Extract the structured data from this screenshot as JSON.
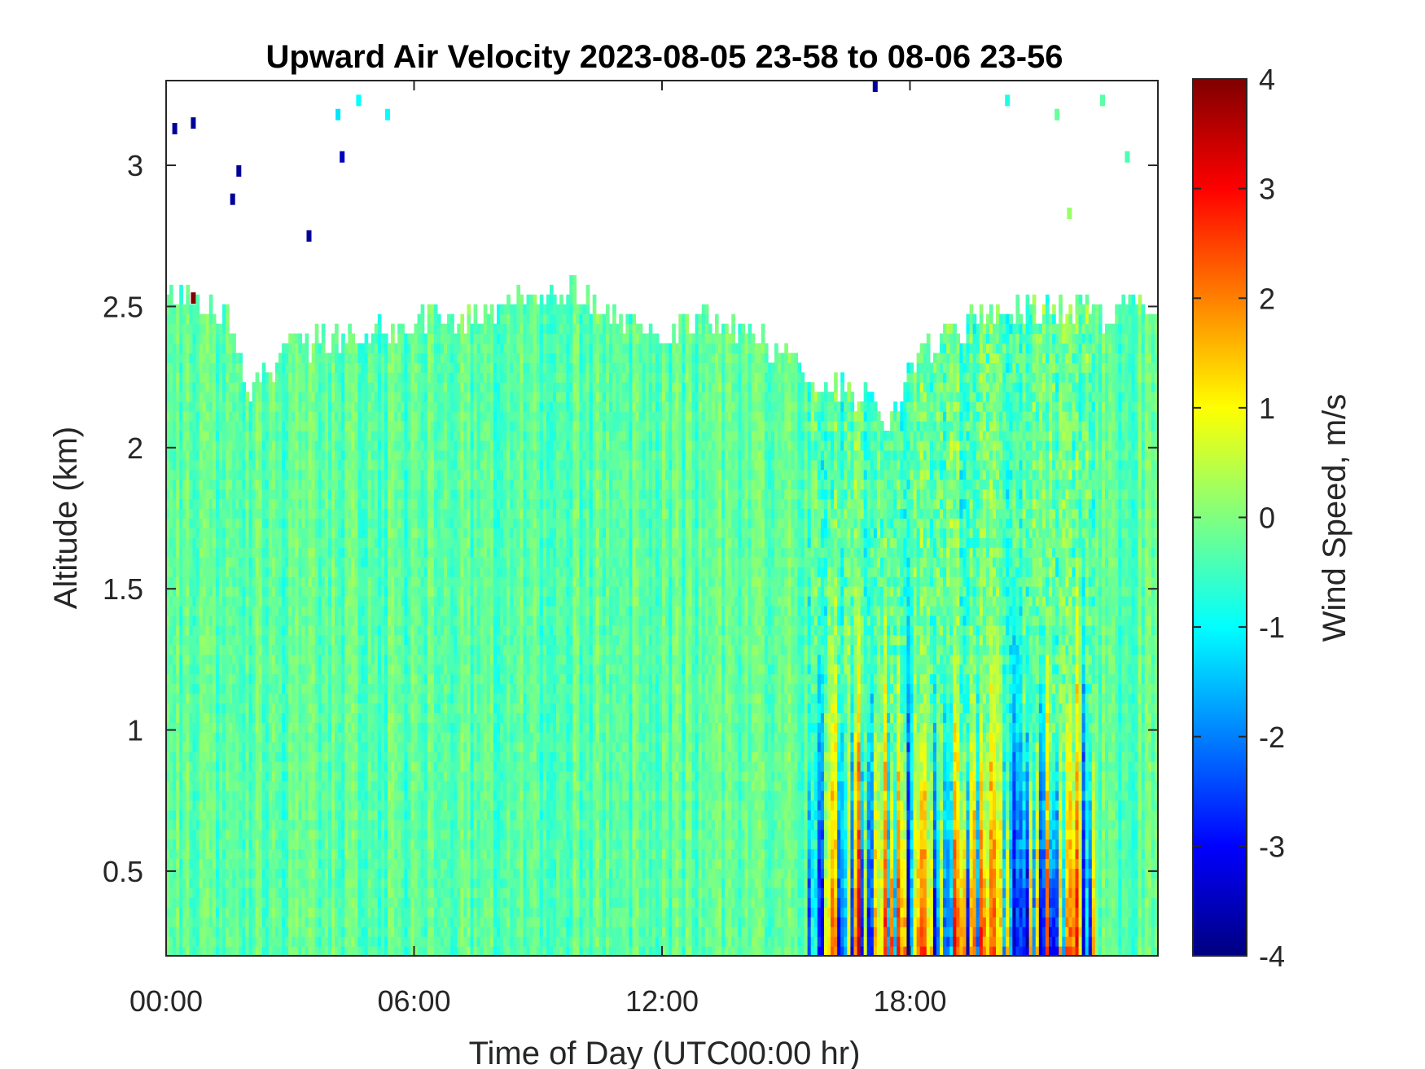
{
  "chart_data": {
    "type": "heatmap",
    "title": "Upward Air Velocity 2023-08-05 23-58 to 08-06 23-56",
    "xlabel": "Time of Day (UTC00:00 hr)",
    "ylabel": "Altitude (km)",
    "x_ticks": [
      "00:00",
      "06:00",
      "12:00",
      "18:00"
    ],
    "x_tick_values_hr": [
      0,
      6,
      12,
      18
    ],
    "xlim_hr": [
      0,
      24
    ],
    "y_ticks": [
      "0.5",
      "1",
      "1.5",
      "2",
      "2.5",
      "3"
    ],
    "y_tick_values_km": [
      0.5,
      1,
      1.5,
      2,
      2.5,
      3
    ],
    "ylim_km": [
      0.2,
      3.3
    ],
    "colorbar": {
      "label": "Wind Speed, m/s",
      "ticks": [
        "-4",
        "-3",
        "-2",
        "-1",
        "0",
        "1",
        "2",
        "3",
        "4"
      ],
      "range": [
        -4,
        4
      ],
      "colormap": "jet"
    },
    "data_top_km": [
      [
        0.0,
        2.55
      ],
      [
        0.5,
        2.55
      ],
      [
        1.0,
        2.5
      ],
      [
        1.5,
        2.45
      ],
      [
        2.0,
        2.2
      ],
      [
        3.0,
        2.35
      ],
      [
        4.0,
        2.4
      ],
      [
        5.0,
        2.4
      ],
      [
        6.0,
        2.45
      ],
      [
        7.0,
        2.45
      ],
      [
        8.0,
        2.5
      ],
      [
        9.0,
        2.55
      ],
      [
        10.0,
        2.55
      ],
      [
        11.0,
        2.45
      ],
      [
        12.0,
        2.4
      ],
      [
        13.0,
        2.45
      ],
      [
        14.0,
        2.4
      ],
      [
        15.0,
        2.35
      ],
      [
        15.5,
        2.3
      ],
      [
        16.0,
        2.2
      ],
      [
        17.0,
        2.2
      ],
      [
        17.5,
        2.1
      ],
      [
        18.0,
        2.3
      ],
      [
        19.0,
        2.4
      ],
      [
        20.0,
        2.5
      ],
      [
        21.0,
        2.5
      ],
      [
        22.0,
        2.48
      ],
      [
        23.0,
        2.48
      ],
      [
        24.0,
        2.48
      ]
    ],
    "regions": [
      {
        "x_range_hr": [
          0,
          15.5
        ],
        "altitude_km": [
          0.2,
          2.5
        ],
        "velocity_ms": "about -0.5 to 0.5"
      },
      {
        "x_range_hr": [
          15.5,
          22.5
        ],
        "altitude_km": [
          0.2,
          1.7
        ],
        "velocity_ms": "alternating strong updrafts (up to 4) and downdrafts (down to -4)"
      },
      {
        "x_range_hr": [
          22.5,
          24
        ],
        "altitude_km": [
          0.2,
          2.5
        ],
        "velocity_ms": "about -1 to 0.5"
      }
    ]
  }
}
